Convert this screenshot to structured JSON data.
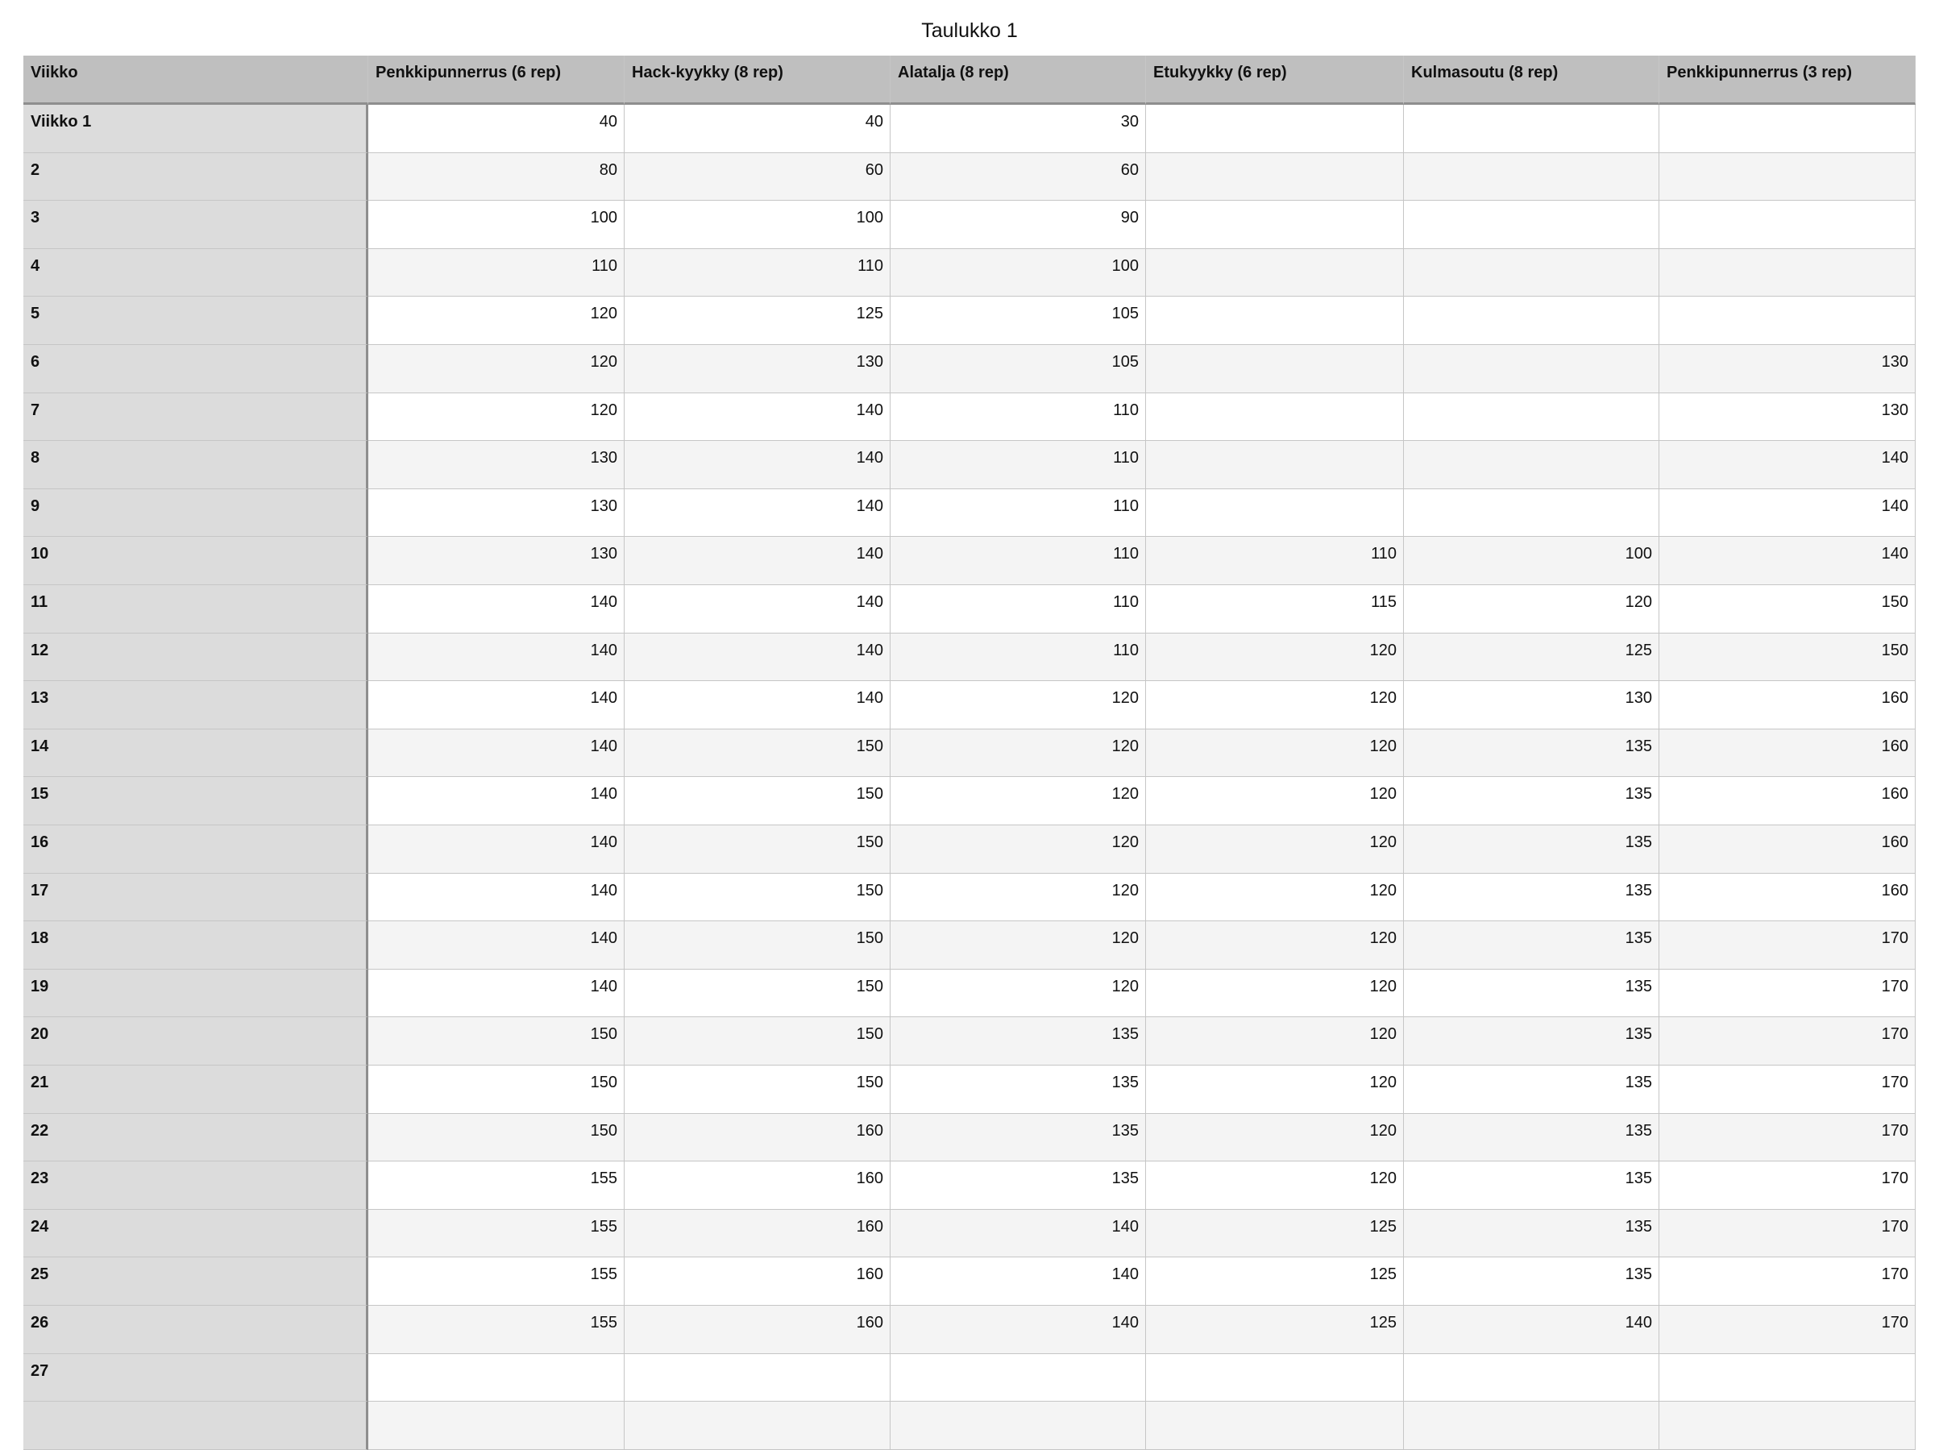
{
  "title": "Taulukko 1",
  "table": {
    "columns": [
      "Viikko",
      "Penkkipunnerrus (6 rep)",
      "Hack-kyykky (8 rep)",
      "Alatalja (8 rep)",
      "Etukyykky (6 rep)",
      "Kulmasoutu (8 rep)",
      "Penkkipunnerrus (3 rep)"
    ],
    "rows": [
      [
        "Viikko 1",
        40,
        40,
        30,
        null,
        null,
        null
      ],
      [
        "2",
        80,
        60,
        60,
        null,
        null,
        null
      ],
      [
        "3",
        100,
        100,
        90,
        null,
        null,
        null
      ],
      [
        "4",
        110,
        110,
        100,
        null,
        null,
        null
      ],
      [
        "5",
        120,
        125,
        105,
        null,
        null,
        null
      ],
      [
        "6",
        120,
        130,
        105,
        null,
        null,
        130
      ],
      [
        "7",
        120,
        140,
        110,
        null,
        null,
        130
      ],
      [
        "8",
        130,
        140,
        110,
        null,
        null,
        140
      ],
      [
        "9",
        130,
        140,
        110,
        null,
        null,
        140
      ],
      [
        "10",
        130,
        140,
        110,
        110,
        100,
        140
      ],
      [
        "11",
        140,
        140,
        110,
        115,
        120,
        150
      ],
      [
        "12",
        140,
        140,
        110,
        120,
        125,
        150
      ],
      [
        "13",
        140,
        140,
        120,
        120,
        130,
        160
      ],
      [
        "14",
        140,
        150,
        120,
        120,
        135,
        160
      ],
      [
        "15",
        140,
        150,
        120,
        120,
        135,
        160
      ],
      [
        "16",
        140,
        150,
        120,
        120,
        135,
        160
      ],
      [
        "17",
        140,
        150,
        120,
        120,
        135,
        160
      ],
      [
        "18",
        140,
        150,
        120,
        120,
        135,
        170
      ],
      [
        "19",
        140,
        150,
        120,
        120,
        135,
        170
      ],
      [
        "20",
        150,
        150,
        135,
        120,
        135,
        170
      ],
      [
        "21",
        150,
        150,
        135,
        120,
        135,
        170
      ],
      [
        "22",
        150,
        160,
        135,
        120,
        135,
        170
      ],
      [
        "23",
        155,
        160,
        135,
        120,
        135,
        170
      ],
      [
        "24",
        155,
        160,
        140,
        125,
        135,
        170
      ],
      [
        "25",
        155,
        160,
        140,
        125,
        135,
        170
      ],
      [
        "26",
        155,
        160,
        140,
        125,
        140,
        170
      ],
      [
        "27",
        null,
        null,
        null,
        null,
        null,
        null
      ]
    ]
  }
}
